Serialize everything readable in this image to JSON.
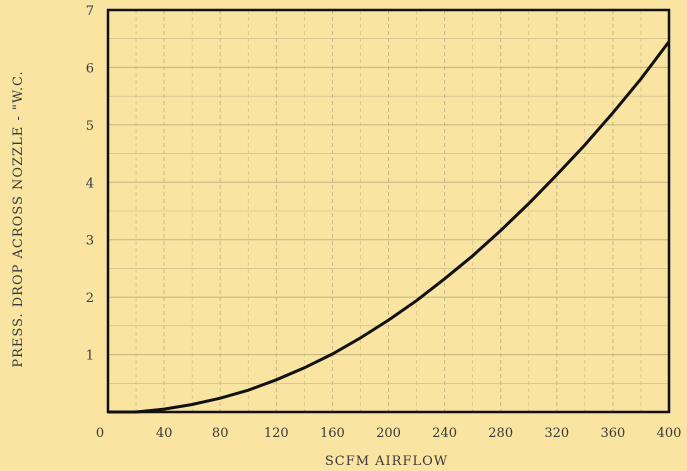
{
  "chart_data": {
    "type": "line",
    "title": "",
    "xlabel": "SCFM  AIRFLOW",
    "ylabel": "PRESS. DROP ACROSS NOZZLE - \"W.C.",
    "xlim": [
      0,
      400
    ],
    "ylim": [
      0,
      7
    ],
    "xticks": [
      0,
      40,
      80,
      120,
      160,
      200,
      240,
      280,
      320,
      360,
      400
    ],
    "yticks": [
      1,
      2,
      3,
      4,
      5,
      6,
      7
    ],
    "grid": true,
    "series": [
      {
        "x": [
          0,
          20,
          40,
          60,
          80,
          100,
          120,
          140,
          160,
          180,
          200,
          220,
          240,
          260,
          280,
          300,
          320,
          340,
          360,
          380,
          400
        ],
        "y": [
          0,
          0.0,
          0.05,
          0.13,
          0.24,
          0.38,
          0.56,
          0.77,
          1.01,
          1.29,
          1.6,
          1.94,
          2.32,
          2.72,
          3.16,
          3.63,
          4.13,
          4.65,
          5.21,
          5.8,
          6.45
        ]
      }
    ],
    "colors": {
      "background": "#f9e4a2",
      "line": "#111111",
      "grid": "#c9b886"
    }
  }
}
